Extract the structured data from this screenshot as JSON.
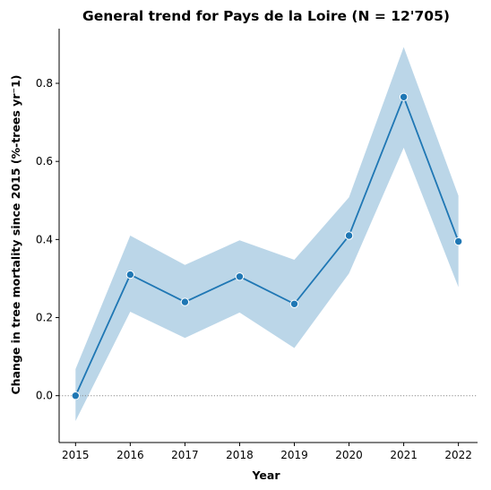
{
  "chart_data": {
    "type": "line",
    "title": "General trend for Pays de la Loire  (N = 12'705)",
    "xlabel": "Year",
    "ylabel": "Change in tree mortality since 2015 (%-trees yr⁻1)",
    "x": [
      2015,
      2016,
      2017,
      2018,
      2019,
      2020,
      2021,
      2022
    ],
    "x_tick_labels": [
      "2015",
      "2016",
      "2017",
      "2018",
      "2019",
      "2020",
      "2021",
      "2022"
    ],
    "y_ticks": [
      0.0,
      0.2,
      0.4,
      0.6,
      0.8
    ],
    "y_tick_labels": [
      "0.0",
      "0.2",
      "0.4",
      "0.6",
      "0.8"
    ],
    "xlim": [
      2014.7,
      2022.35
    ],
    "ylim": [
      -0.12,
      0.94
    ],
    "series": [
      {
        "values": [
          0.0,
          0.31,
          0.24,
          0.305,
          0.235,
          0.41,
          0.765,
          0.395
        ],
        "ci_lower": [
          -0.065,
          0.215,
          0.148,
          0.213,
          0.122,
          0.313,
          0.635,
          0.278
        ],
        "ci_upper": [
          0.068,
          0.41,
          0.335,
          0.398,
          0.348,
          0.508,
          0.893,
          0.512
        ]
      }
    ],
    "reference_line": {
      "y": 0.0,
      "style": "dotted"
    },
    "grid": false,
    "legend": "none",
    "colors": {
      "line": "#1f77b4",
      "band": "#1f77b4",
      "reference": "#888888"
    }
  }
}
